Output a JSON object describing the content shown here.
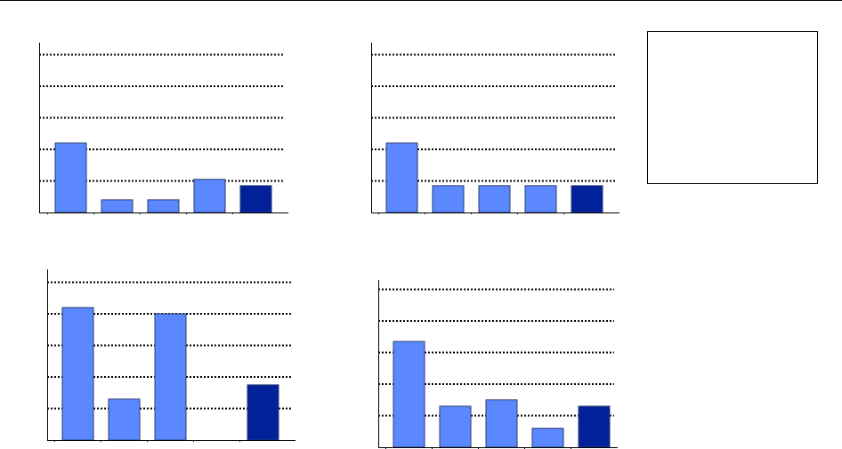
{
  "colors": {
    "bar_light": "#5b88ff",
    "bar_dark": "#01219a",
    "bar_stroke": "#2b3c6e",
    "axis": "#000000",
    "grid": "#000000",
    "page_background": "#ffffff"
  },
  "legend": {
    "entries": []
  },
  "chart_data": [
    {
      "type": "bar",
      "title": "",
      "xlabel": "",
      "ylabel": "",
      "ylim": [
        0,
        5
      ],
      "grid": true,
      "gridlines": [
        1,
        2,
        3,
        4,
        5
      ],
      "categories": [
        "",
        "",
        "",
        "",
        ""
      ],
      "values": [
        2.2,
        0.4,
        0.4,
        1.05,
        0.85
      ],
      "highlight": [
        false,
        false,
        false,
        false,
        true
      ]
    },
    {
      "type": "bar",
      "title": "",
      "xlabel": "",
      "ylabel": "",
      "ylim": [
        0,
        5
      ],
      "grid": true,
      "gridlines": [
        1,
        2,
        3,
        4,
        5
      ],
      "categories": [
        "",
        "",
        "",
        "",
        ""
      ],
      "values": [
        2.2,
        0.85,
        0.85,
        0.85,
        0.85
      ],
      "highlight": [
        false,
        false,
        false,
        false,
        true
      ]
    },
    {
      "type": "bar",
      "title": "",
      "xlabel": "",
      "ylabel": "",
      "ylim": [
        0,
        5
      ],
      "grid": true,
      "gridlines": [
        1,
        2,
        3,
        4,
        5
      ],
      "categories": [
        "",
        "",
        "",
        "",
        ""
      ],
      "values": [
        4.2,
        1.3,
        4.0,
        0,
        1.75
      ],
      "highlight": [
        false,
        false,
        false,
        false,
        true
      ]
    },
    {
      "type": "bar",
      "title": "",
      "xlabel": "",
      "ylabel": "",
      "ylim": [
        0,
        5
      ],
      "grid": true,
      "gridlines": [
        1,
        2,
        3,
        4,
        5
      ],
      "categories": [
        "",
        "",
        "",
        "",
        ""
      ],
      "values": [
        3.35,
        1.3,
        1.5,
        0.6,
        1.3
      ],
      "highlight": [
        false,
        false,
        false,
        false,
        true
      ]
    }
  ]
}
